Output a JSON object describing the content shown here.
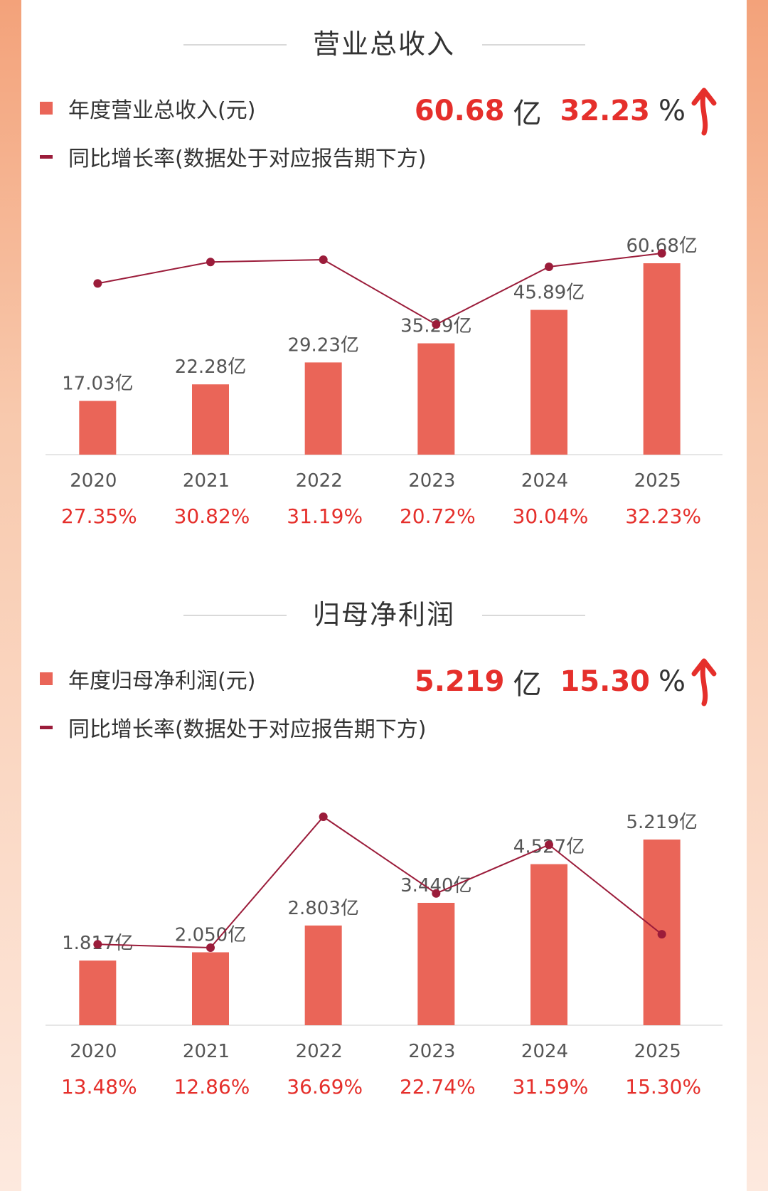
{
  "colors": {
    "bar": "#ea6558",
    "line": "#9b1c3a",
    "highlight": "#e52f2b",
    "axis": "#e6e6e6"
  },
  "chart_data": [
    {
      "type": "bar",
      "title": "营业总收入",
      "legend_bar": "年度营业总收入(元)",
      "legend_line": "同比增长率(数据处于对应报告期下方)",
      "summary_value": "60.68",
      "summary_unit": "亿",
      "summary_pct": "32.23",
      "summary_pct_sign": "%",
      "summary_icon": "up-arrow-icon",
      "categories": [
        "2020",
        "2021",
        "2022",
        "2023",
        "2024",
        "2025"
      ],
      "series": [
        {
          "name": "年度营业总收入(元)",
          "values": [
            17.03,
            22.28,
            29.23,
            35.29,
            45.89,
            60.68
          ],
          "labels": [
            "17.03亿",
            "22.28亿",
            "29.23亿",
            "35.29亿",
            "45.89亿",
            "60.68亿"
          ]
        },
        {
          "name": "同比增长率(数据处于对应报告期下方)",
          "values": [
            27.35,
            30.82,
            31.19,
            20.72,
            30.04,
            32.23
          ],
          "labels": [
            "27.35%",
            "30.82%",
            "31.19%",
            "20.72%",
            "30.04%",
            "32.23%"
          ]
        }
      ]
    },
    {
      "type": "bar",
      "title": "归母净利润",
      "legend_bar": "年度归母净利润(元)",
      "legend_line": "同比增长率(数据处于对应报告期下方)",
      "summary_value": "5.219",
      "summary_unit": "亿",
      "summary_pct": "15.30",
      "summary_pct_sign": "%",
      "summary_icon": "up-arrow-icon",
      "categories": [
        "2020",
        "2021",
        "2022",
        "2023",
        "2024",
        "2025"
      ],
      "series": [
        {
          "name": "年度归母净利润(元)",
          "values": [
            1.817,
            2.05,
            2.803,
            3.44,
            4.527,
            5.219
          ],
          "labels": [
            "1.817亿",
            "2.050亿",
            "2.803亿",
            "3.440亿",
            "4.527亿",
            "5.219亿"
          ]
        },
        {
          "name": "同比增长率(数据处于对应报告期下方)",
          "values": [
            13.48,
            12.86,
            36.69,
            22.74,
            31.59,
            15.3
          ],
          "labels": [
            "13.48%",
            "12.86%",
            "36.69%",
            "22.74%",
            "31.59%",
            "15.30%"
          ]
        }
      ]
    }
  ]
}
